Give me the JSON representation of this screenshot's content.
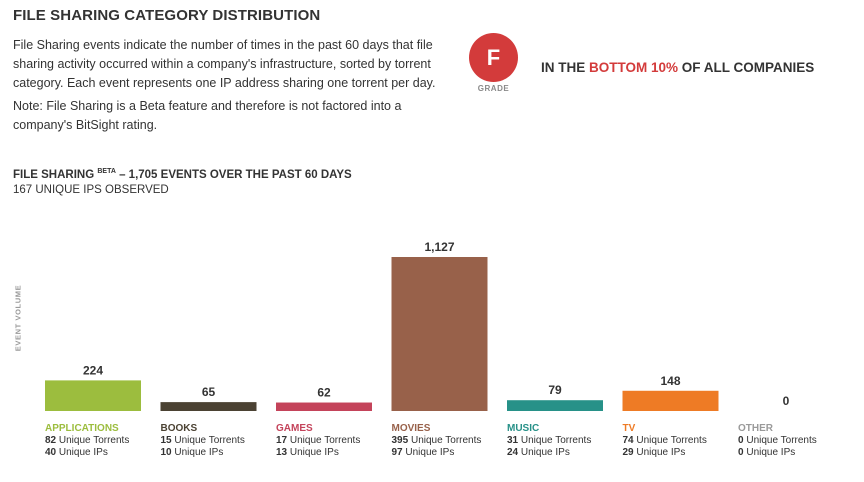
{
  "page": {
    "title": "FILE SHARING CATEGORY DISTRIBUTION",
    "description_1": "File Sharing events indicate the number of times in the past 60 days that file sharing activity occurred within a company's infrastructure, sorted by torrent category. Each event represents one IP address sharing one torrent per day.",
    "description_2": "Note: File Sharing is a Beta feature and therefore is not factored into a company's BitSight rating."
  },
  "grade": {
    "letter": "F",
    "label": "GRADE",
    "percentile_prefix": "IN THE ",
    "percentile_highlight": "BOTTOM 10%",
    "percentile_suffix": " OF ALL COMPANIES",
    "color": "#d33b3b"
  },
  "summary": {
    "header_prefix": "FILE SHARING ",
    "header_beta": "BETA",
    "header_suffix": " – 1,705 EVENTS OVER THE PAST 60 DAYS",
    "unique_ips": "167 UNIQUE IPS OBSERVED"
  },
  "chart_data": {
    "type": "bar",
    "ylabel": "EVENT VOLUME",
    "categories": [
      "APPLICATIONS",
      "BOOKS",
      "GAMES",
      "MOVIES",
      "MUSIC",
      "TV",
      "OTHER"
    ],
    "values": [
      224,
      65,
      62,
      1127,
      79,
      148,
      0
    ],
    "value_labels": [
      "224",
      "65",
      "62",
      "1,127",
      "79",
      "148",
      "0"
    ],
    "unique_torrents": [
      82,
      15,
      17,
      395,
      31,
      74,
      0
    ],
    "unique_ips": [
      40,
      10,
      13,
      97,
      24,
      29,
      0
    ],
    "torrents_suffix": " Unique Torrents",
    "ips_suffix": " Unique IPs",
    "colors": [
      "#9cbd3e",
      "#4b4233",
      "#c4435a",
      "#98614a",
      "#279188",
      "#ee7b25",
      "#9a9a9a"
    ],
    "ylim": [
      0,
      1127
    ],
    "grid": false,
    "legend": "none"
  }
}
